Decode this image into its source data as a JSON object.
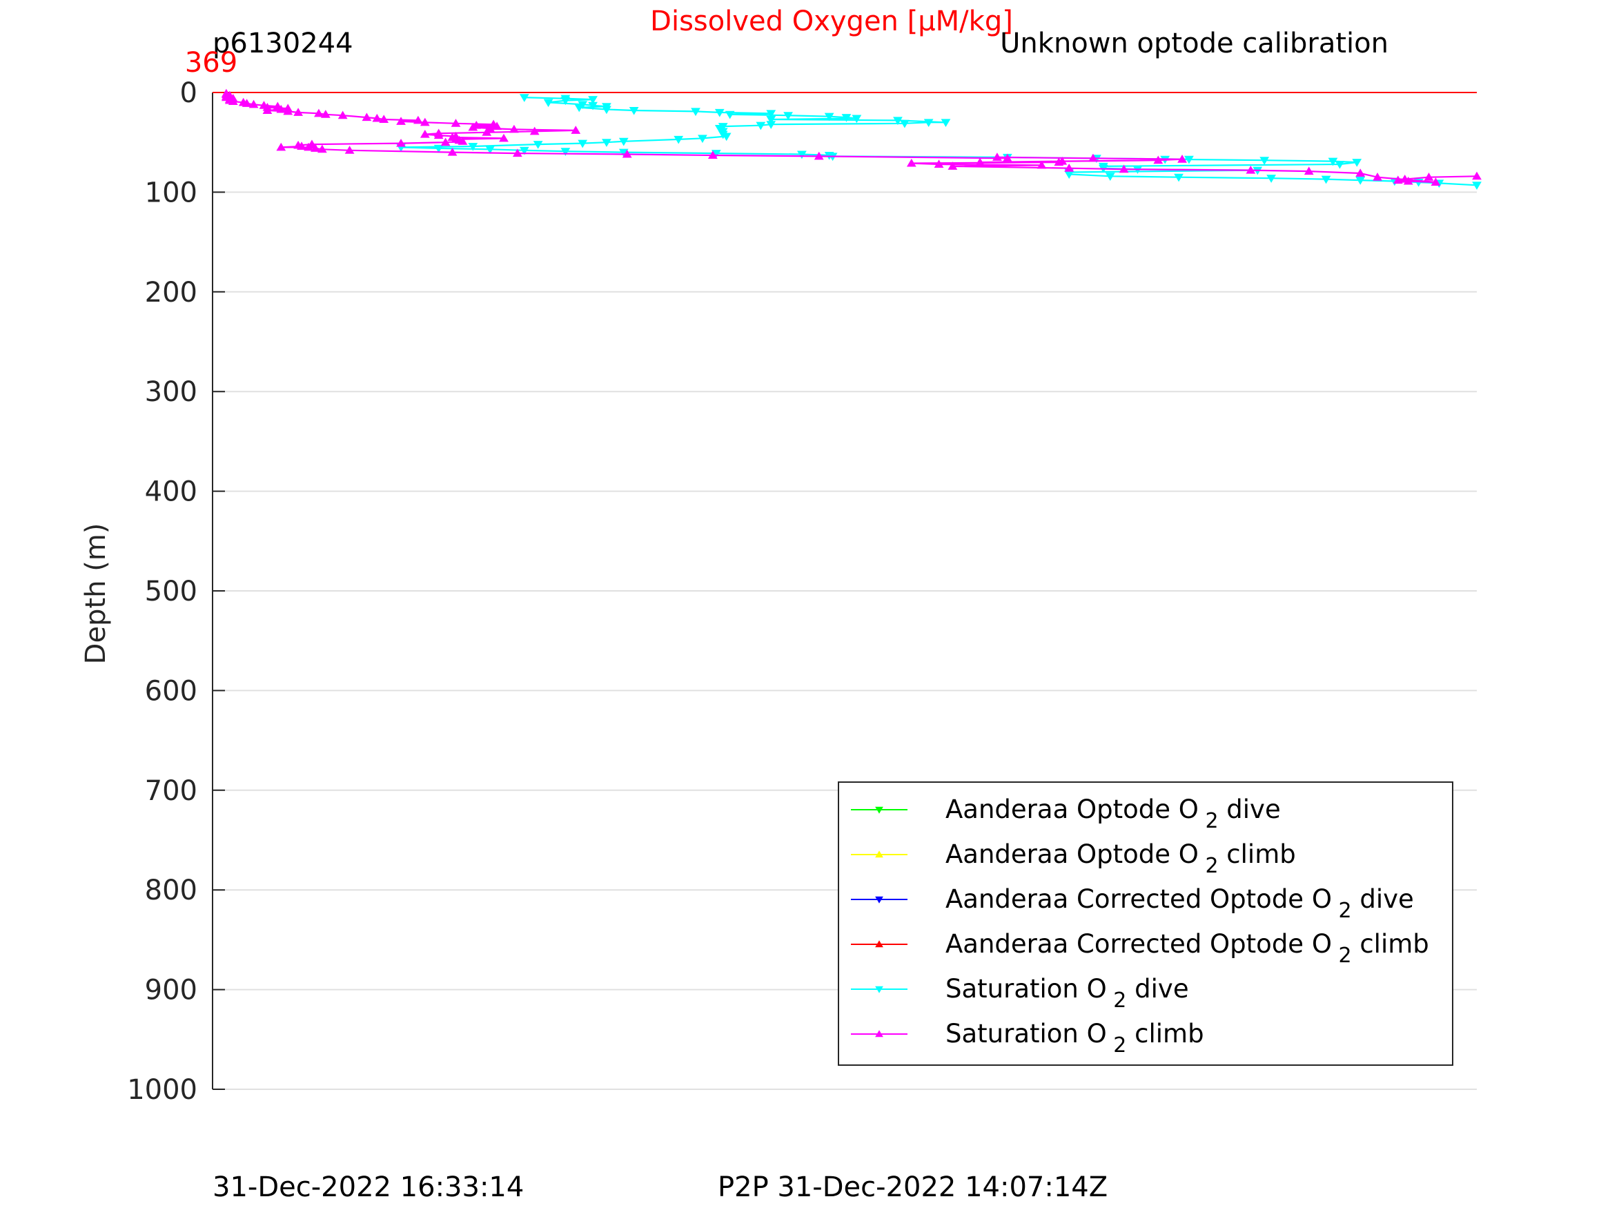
{
  "header": {
    "title": "Dissolved Oxygen [μM/kg]",
    "left_label": "p6130244",
    "right_label": "Unknown optode calibration",
    "axis_top_value": "369"
  },
  "footer": {
    "left": "31-Dec-2022 16:33:14",
    "right": "P2P 31-Dec-2022 14:07:14Z"
  },
  "colors": {
    "title": "#ff0000",
    "grid": "#e0e0e0",
    "axis": "#262626",
    "optode_dive": "#00ff00",
    "optode_climb": "#ffff00",
    "corrected_dive": "#0000ff",
    "corrected_climb": "#ff0000",
    "sat_dive": "#00ffff",
    "sat_climb": "#ff00ff"
  },
  "chart_data": {
    "type": "line",
    "ylabel": "Depth (m)",
    "xlabel": "",
    "ylim": [
      0,
      1000
    ],
    "y_reversed": true,
    "yticks": [
      "0",
      "100",
      "200",
      "300",
      "400",
      "500",
      "600",
      "700",
      "800",
      "900",
      "1000"
    ],
    "xlim_right": 369,
    "grid": true,
    "legend_position": "bottom-right",
    "legend": [
      {
        "name": "Aanderaa Optode O",
        "sub": "2",
        "suffix": " dive",
        "color": "#00ff00",
        "marker": "down"
      },
      {
        "name": "Aanderaa Optode O",
        "sub": "2",
        "suffix": " climb",
        "color": "#ffff00",
        "marker": "up"
      },
      {
        "name": "Aanderaa Corrected Optode O",
        "sub": "2",
        "suffix": " dive",
        "color": "#0000ff",
        "marker": "down"
      },
      {
        "name": "Aanderaa Corrected Optode O",
        "sub": "2",
        "suffix": " climb",
        "color": "#ff0000",
        "marker": "up"
      },
      {
        "name": "Saturation O",
        "sub": "2",
        "suffix": " dive",
        "color": "#00ffff",
        "marker": "down"
      },
      {
        "name": "Saturation O",
        "sub": "2",
        "suffix": " climb",
        "color": "#ff00ff",
        "marker": "up"
      }
    ],
    "series": [
      {
        "key": "corrected_climb",
        "color": "#ff0000",
        "marker": "none",
        "points": [
          [
            0,
            0
          ],
          [
            369,
            0
          ]
        ]
      },
      {
        "key": "sat_dive",
        "color": "#00ffff",
        "marker": "down",
        "points": [
          [
            91,
            5
          ],
          [
            103,
            6
          ],
          [
            111,
            7
          ],
          [
            103,
            8
          ],
          [
            98,
            10
          ],
          [
            108,
            12
          ],
          [
            111,
            13
          ],
          [
            115,
            14
          ],
          [
            107,
            15
          ],
          [
            115,
            17
          ],
          [
            123,
            18
          ],
          [
            141,
            19
          ],
          [
            148,
            20
          ],
          [
            163,
            21
          ],
          [
            151,
            22
          ],
          [
            168,
            23
          ],
          [
            180,
            24
          ],
          [
            185,
            25
          ],
          [
            188,
            26
          ],
          [
            163,
            27
          ],
          [
            200,
            28
          ],
          [
            214,
            30
          ],
          [
            209,
            30
          ],
          [
            202,
            31
          ],
          [
            163,
            32
          ],
          [
            160,
            33
          ],
          [
            149,
            34
          ],
          [
            148,
            36
          ],
          [
            149,
            39
          ],
          [
            149,
            42
          ],
          [
            150,
            44
          ],
          [
            143,
            46
          ],
          [
            136,
            47
          ],
          [
            120,
            49
          ],
          [
            115,
            50
          ],
          [
            108,
            51
          ],
          [
            95,
            52
          ],
          [
            76,
            54
          ],
          [
            55,
            55
          ],
          [
            66,
            56
          ],
          [
            81,
            57
          ],
          [
            91,
            58
          ],
          [
            103,
            59
          ],
          [
            120,
            60
          ],
          [
            147,
            61
          ],
          [
            172,
            62
          ],
          [
            180,
            63
          ],
          [
            181,
            64
          ],
          [
            232,
            65
          ],
          [
            258,
            66
          ],
          [
            285,
            67
          ],
          [
            278,
            67
          ],
          [
            307,
            68
          ],
          [
            327,
            69
          ],
          [
            334,
            70
          ],
          [
            329,
            72
          ],
          [
            260,
            74
          ],
          [
            260,
            76
          ],
          [
            270,
            77
          ],
          [
            305,
            78
          ],
          [
            250,
            80
          ],
          [
            250,
            82
          ],
          [
            262,
            84
          ],
          [
            282,
            85
          ],
          [
            309,
            86
          ],
          [
            325,
            87
          ],
          [
            335,
            88
          ],
          [
            345,
            89
          ],
          [
            352,
            90
          ],
          [
            358,
            91
          ],
          [
            369,
            93
          ]
        ]
      },
      {
        "key": "sat_climb",
        "color": "#ff00ff",
        "marker": "up",
        "points": [
          [
            369,
            84
          ],
          [
            355,
            85
          ],
          [
            348,
            87
          ],
          [
            346,
            88
          ],
          [
            349,
            89
          ],
          [
            357,
            90
          ],
          [
            340,
            85
          ],
          [
            335,
            81
          ],
          [
            320,
            79
          ],
          [
            303,
            78
          ],
          [
            266,
            77
          ],
          [
            250,
            76
          ],
          [
            216,
            74
          ],
          [
            242,
            73
          ],
          [
            212,
            72
          ],
          [
            204,
            71
          ],
          [
            247,
            70
          ],
          [
            224,
            70
          ],
          [
            248,
            69
          ],
          [
            276,
            68
          ],
          [
            283,
            67
          ],
          [
            257,
            66
          ],
          [
            229,
            65
          ],
          [
            232,
            66
          ],
          [
            177,
            64
          ],
          [
            146,
            63
          ],
          [
            121,
            62
          ],
          [
            89,
            61
          ],
          [
            70,
            60
          ],
          [
            40,
            58
          ],
          [
            32,
            57
          ],
          [
            30,
            56
          ],
          [
            28,
            55
          ],
          [
            20,
            55
          ],
          [
            26,
            54
          ],
          [
            25,
            53
          ],
          [
            29,
            52
          ],
          [
            55,
            51
          ],
          [
            68,
            50
          ],
          [
            73,
            49
          ],
          [
            72,
            48
          ],
          [
            71,
            47
          ],
          [
            85,
            46
          ],
          [
            70,
            45
          ],
          [
            71,
            44
          ],
          [
            66,
            43
          ],
          [
            62,
            42
          ],
          [
            66,
            41
          ],
          [
            80,
            40
          ],
          [
            94,
            39
          ],
          [
            106,
            38
          ],
          [
            88,
            37
          ],
          [
            81,
            36
          ],
          [
            76,
            35
          ],
          [
            83,
            34
          ],
          [
            77,
            33
          ],
          [
            82,
            32
          ],
          [
            71,
            31
          ],
          [
            62,
            30
          ],
          [
            55,
            29
          ],
          [
            60,
            28
          ],
          [
            50,
            27
          ],
          [
            48,
            26
          ],
          [
            45,
            25
          ],
          [
            38,
            23
          ],
          [
            33,
            22
          ],
          [
            31,
            21
          ],
          [
            25,
            20
          ],
          [
            22,
            19
          ],
          [
            16,
            18
          ],
          [
            20,
            17
          ],
          [
            22,
            16
          ],
          [
            16,
            15
          ],
          [
            19,
            14
          ],
          [
            15,
            13
          ],
          [
            12,
            12
          ],
          [
            10,
            11
          ],
          [
            9,
            10
          ],
          [
            6,
            9
          ],
          [
            5,
            8
          ],
          [
            5,
            7
          ],
          [
            6,
            6
          ],
          [
            4,
            5
          ],
          [
            4,
            4
          ],
          [
            5,
            3
          ],
          [
            4,
            2
          ],
          [
            4,
            1
          ]
        ]
      }
    ]
  }
}
